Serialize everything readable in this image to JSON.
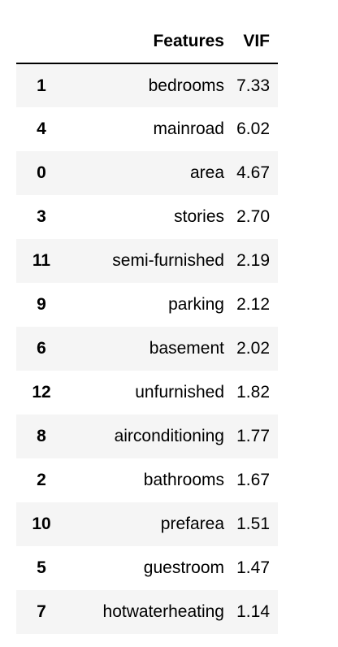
{
  "table": {
    "header": {
      "index": "",
      "features": "Features",
      "vif": "VIF"
    },
    "rows": [
      {
        "index": "1",
        "feature": "bedrooms",
        "vif": "7.33"
      },
      {
        "index": "4",
        "feature": "mainroad",
        "vif": "6.02"
      },
      {
        "index": "0",
        "feature": "area",
        "vif": "4.67"
      },
      {
        "index": "3",
        "feature": "stories",
        "vif": "2.70"
      },
      {
        "index": "11",
        "feature": "semi-furnished",
        "vif": "2.19"
      },
      {
        "index": "9",
        "feature": "parking",
        "vif": "2.12"
      },
      {
        "index": "6",
        "feature": "basement",
        "vif": "2.02"
      },
      {
        "index": "12",
        "feature": "unfurnished",
        "vif": "1.82"
      },
      {
        "index": "8",
        "feature": "airconditioning",
        "vif": "1.77"
      },
      {
        "index": "2",
        "feature": "bathrooms",
        "vif": "1.67"
      },
      {
        "index": "10",
        "feature": "prefarea",
        "vif": "1.51"
      },
      {
        "index": "5",
        "feature": "guestroom",
        "vif": "1.47"
      },
      {
        "index": "7",
        "feature": "hotwaterheating",
        "vif": "1.14"
      }
    ]
  }
}
